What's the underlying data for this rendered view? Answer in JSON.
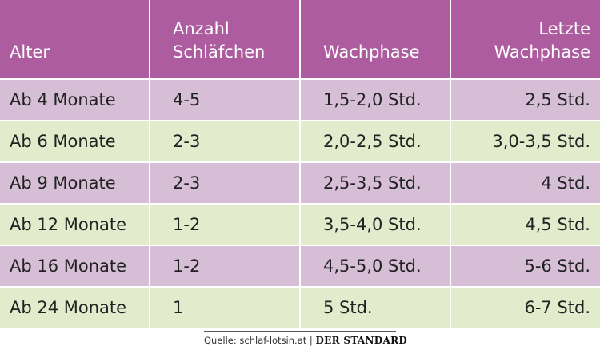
{
  "chart_data": {
    "type": "table",
    "columns": [
      "Alter",
      "Anzahl Schläfchen",
      "Wachphase",
      "Letzte Wachphase"
    ],
    "rows": [
      [
        "Ab 4 Monate",
        "4-5",
        "1,5-2,0 Std.",
        "2,5 Std."
      ],
      [
        "Ab 6 Monate",
        "2-3",
        "2,0-2,5 Std.",
        "3,0-3,5 Std."
      ],
      [
        "Ab 9 Monate",
        "2-3",
        "2,5-3,5 Std.",
        "4 Std."
      ],
      [
        "Ab 12 Monate",
        "1-2",
        "3,5-4,0 Std.",
        "4,5 Std."
      ],
      [
        "Ab 16 Monate",
        "1-2",
        "4,5-5,0 Std.",
        "5-6 Std."
      ],
      [
        "Ab 24 Monate",
        "1",
        "5 Std.",
        "6-7 Std."
      ]
    ]
  },
  "footer": {
    "source": "Quelle: schlaf-lotsin.at",
    "separator": "|",
    "brand": "DER STANDARD"
  },
  "colors": {
    "header": "#ad5c9f",
    "row_odd": "#d6bfd6",
    "row_even": "#e2ebcb"
  }
}
